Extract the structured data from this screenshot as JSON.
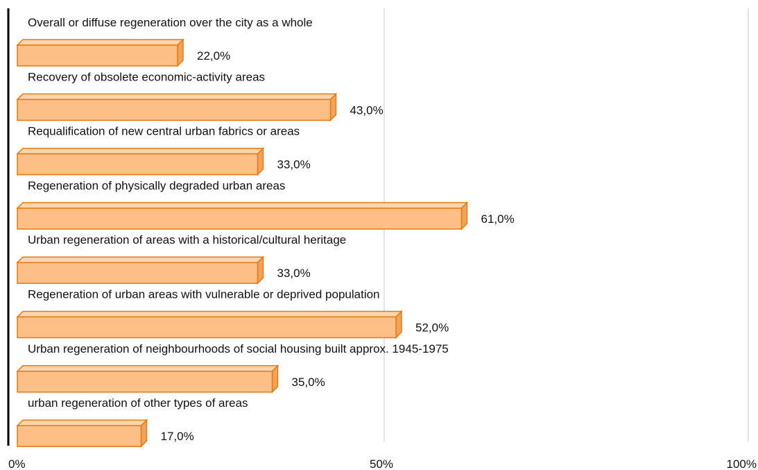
{
  "chart_data": {
    "type": "bar",
    "orientation": "horizontal",
    "style": "3d",
    "bar_color": "#fdbf86",
    "bar_edge_color": "#e57a14",
    "bar_top_color": "#fcd4ad",
    "bar_side_color": "#f0a35c",
    "grid": true,
    "xlim": [
      0,
      100
    ],
    "x_ticks": [
      {
        "value": 0,
        "label": "0%"
      },
      {
        "value": 50,
        "label": "50%"
      },
      {
        "value": 100,
        "label": "100%"
      }
    ],
    "categories": [
      "Overall or diffuse regeneration over the city as a whole",
      "Recovery of obsolete economic-activity areas",
      "Requalification of new central urban fabrics or areas",
      "Regeneration of physically degraded urban areas",
      "Urban regeneration of areas with a historical/cultural heritage",
      "Regeneration of urban areas with vulnerable or deprived population",
      "Urban regeneration of neighbourhoods of social housing built approx. 1945-1975",
      "urban regeneration of other types of areas"
    ],
    "values": [
      22.0,
      43.0,
      33.0,
      61.0,
      33.0,
      52.0,
      35.0,
      17.0
    ],
    "value_labels": [
      "22,0%",
      "43,0%",
      "33,0%",
      "61,0%",
      "33,0%",
      "52,0%",
      "35,0%",
      "17,0%"
    ]
  }
}
